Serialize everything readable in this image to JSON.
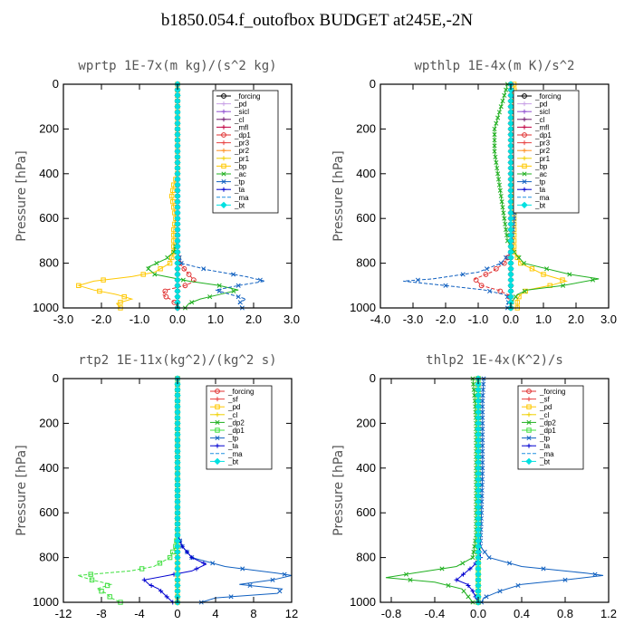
{
  "figure_title": "b1850.054.f_outofbox  BUDGET at245E,-2N",
  "chart_data": [
    {
      "type": "line",
      "title": "wprtp  1E-7x(m kg)/(s^2 kg)",
      "ylabel": "Pressure [hPa]",
      "xlim": [
        -3.0,
        3.0
      ],
      "ylim": [
        1000,
        0
      ],
      "xticks": [
        "-3.0",
        "-2.0",
        "-1.0",
        "0.0",
        "1.0",
        "2.0",
        "3.0"
      ],
      "xtick_values": [
        -3,
        -2,
        -1,
        0,
        1,
        2,
        3
      ],
      "yticks": [
        "0",
        "200",
        "400",
        "600",
        "800",
        "1000"
      ],
      "ytick_values": [
        0,
        200,
        400,
        600,
        800,
        1000
      ],
      "series": [
        {
          "name": "_forcing",
          "color": "#000000",
          "marker": "o",
          "y": [
            0,
            1000
          ],
          "x": [
            0,
            0
          ]
        },
        {
          "name": "_pd",
          "color": "#c8a0e6",
          "marker": "+",
          "y": [
            0,
            1000
          ],
          "x": [
            0,
            0
          ]
        },
        {
          "name": "_sicl",
          "color": "#9050d0",
          "marker": "+",
          "y": [
            0,
            1000
          ],
          "x": [
            0,
            0
          ]
        },
        {
          "name": "_cl",
          "color": "#701870",
          "marker": "+",
          "y": [
            0,
            1000
          ],
          "x": [
            0,
            0
          ]
        },
        {
          "name": "_mfl",
          "color": "#c00040",
          "marker": "+",
          "y": [
            0,
            1000
          ],
          "x": [
            0,
            0
          ]
        },
        {
          "name": "_dp1",
          "color": "#e03030",
          "marker": "o",
          "y": [
            0,
            750,
            800,
            850,
            880,
            900,
            920,
            940,
            960,
            980,
            1000
          ],
          "x": [
            0,
            0,
            0.05,
            0.3,
            0.45,
            0.2,
            -0.3,
            -0.4,
            -0.2,
            -0.05,
            0
          ]
        },
        {
          "name": "_pr3",
          "color": "#e84040",
          "marker": "+",
          "y": [
            0,
            1000
          ],
          "x": [
            0,
            0
          ]
        },
        {
          "name": "_pr2",
          "color": "#ff9020",
          "marker": "+",
          "y": [
            0,
            1000
          ],
          "x": [
            0,
            0
          ]
        },
        {
          "name": "_pr1",
          "color": "#f0d000",
          "marker": "+",
          "y": [
            0,
            1000
          ],
          "x": [
            0,
            0
          ]
        },
        {
          "name": "_bp",
          "color": "#ffc800",
          "marker": "s",
          "y": [
            0,
            400,
            450,
            500,
            550,
            600,
            650,
            700,
            750,
            800,
            840,
            860,
            880,
            900,
            920,
            940,
            960,
            980,
            1000
          ],
          "x": [
            0,
            0,
            -0.1,
            -0.15,
            -0.1,
            -0.05,
            -0.1,
            -0.1,
            -0.1,
            -0.2,
            -0.6,
            -1.2,
            -2.2,
            -2.6,
            -2.2,
            -1.6,
            -1.2,
            -1.6,
            -1.5
          ]
        },
        {
          "name": "_ac",
          "color": "#20b020",
          "marker": "x",
          "y": [
            0,
            700,
            750,
            780,
            820,
            850,
            880,
            900,
            920,
            940,
            960,
            980,
            1000
          ],
          "x": [
            0,
            0,
            -0.1,
            -0.3,
            -0.8,
            -0.6,
            0.3,
            1.1,
            1.6,
            1.1,
            0.6,
            0.3,
            0.2
          ]
        },
        {
          "name": "_tp",
          "color": "#1060c0",
          "marker": "x",
          "y": [
            0,
            750,
            800,
            830,
            860,
            880,
            900,
            920,
            940,
            960,
            980,
            1000
          ],
          "x": [
            0,
            0,
            0.1,
            0.8,
            1.8,
            2.3,
            1.6,
            1.0,
            1.4,
            1.8,
            1.6,
            1.7
          ]
        },
        {
          "name": "_ta",
          "color": "#0000d0",
          "marker": "+",
          "y": [
            0,
            1000
          ],
          "x": [
            0,
            0
          ]
        },
        {
          "name": "_ma",
          "color": "#2090e0",
          "marker": "-",
          "y": [
            0,
            1000
          ],
          "x": [
            0,
            0
          ]
        },
        {
          "name": "_bt",
          "color": "#00e0e0",
          "marker": "d",
          "y": [
            0,
            1000
          ],
          "x": [
            0,
            0
          ]
        }
      ]
    },
    {
      "type": "line",
      "title": "wpthlp  1E-4x(m K)/s^2",
      "ylabel": "Pressure [hPa]",
      "xlim": [
        -4.0,
        3.0
      ],
      "ylim": [
        1000,
        0
      ],
      "xticks": [
        "-4.0",
        "-3.0",
        "-2.0",
        "-1.0",
        "0.0",
        "1.0",
        "2.0",
        "3.0"
      ],
      "xtick_values": [
        -4,
        -3,
        -2,
        -1,
        0,
        1,
        2,
        3
      ],
      "yticks": [
        "0",
        "200",
        "400",
        "600",
        "800",
        "1000"
      ],
      "ytick_values": [
        0,
        200,
        400,
        600,
        800,
        1000
      ],
      "series": [
        {
          "name": "_forcing",
          "color": "#000000",
          "marker": "o",
          "y": [
            0,
            1000
          ],
          "x": [
            0,
            0
          ]
        },
        {
          "name": "_pd",
          "color": "#c8a0e6",
          "marker": "+",
          "y": [
            0,
            1000
          ],
          "x": [
            0,
            0
          ]
        },
        {
          "name": "_sicl",
          "color": "#9050d0",
          "marker": "+",
          "y": [
            0,
            1000
          ],
          "x": [
            0,
            0
          ]
        },
        {
          "name": "_cl",
          "color": "#701870",
          "marker": "+",
          "y": [
            0,
            1000
          ],
          "x": [
            0,
            0
          ]
        },
        {
          "name": "_mfl",
          "color": "#c00040",
          "marker": "+",
          "y": [
            0,
            1000
          ],
          "x": [
            0,
            0
          ]
        },
        {
          "name": "_dp1",
          "color": "#e03030",
          "marker": "o",
          "y": [
            0,
            750,
            800,
            840,
            870,
            900,
            920,
            940,
            960,
            980,
            1000
          ],
          "x": [
            0,
            0,
            -0.2,
            -0.6,
            -1.1,
            -0.9,
            -0.4,
            -0.1,
            0,
            0,
            0
          ]
        },
        {
          "name": "_pr3",
          "color": "#e84040",
          "marker": "+",
          "y": [
            0,
            1000
          ],
          "x": [
            0,
            0
          ]
        },
        {
          "name": "_pr2",
          "color": "#ff9020",
          "marker": "+",
          "y": [
            0,
            1000
          ],
          "x": [
            0,
            0
          ]
        },
        {
          "name": "_pr1",
          "color": "#f0d000",
          "marker": "+",
          "y": [
            0,
            1000
          ],
          "x": [
            0,
            0
          ]
        },
        {
          "name": "_bp",
          "color": "#ffc800",
          "marker": "s",
          "y": [
            0,
            200,
            400,
            600,
            750,
            800,
            850,
            880,
            900,
            920,
            940,
            960,
            1000
          ],
          "x": [
            0.1,
            0.15,
            0.15,
            0.1,
            0.1,
            0.3,
            1.0,
            1.7,
            1.2,
            0.5,
            0.3,
            0.2,
            0.2
          ]
        },
        {
          "name": "_ac",
          "color": "#20b020",
          "marker": "x",
          "y": [
            0,
            100,
            200,
            300,
            400,
            500,
            600,
            700,
            750,
            800,
            850,
            870,
            900,
            920,
            940,
            960,
            980,
            1000
          ],
          "x": [
            -0.1,
            -0.3,
            -0.5,
            -0.5,
            -0.4,
            -0.3,
            -0.2,
            -0.1,
            0.1,
            0.4,
            1.8,
            2.7,
            1.6,
            0.5,
            0.2,
            0.1,
            0,
            0
          ]
        },
        {
          "name": "_tp",
          "color": "#1060c0",
          "marker": "x",
          "y": [
            0,
            100,
            200,
            400,
            600,
            750,
            800,
            840,
            870,
            880,
            900,
            920,
            940,
            960,
            980,
            1000
          ],
          "x": [
            0,
            0.1,
            0.2,
            0.2,
            0.1,
            0,
            -0.3,
            -1.0,
            -2.4,
            -3.3,
            -2.0,
            -0.8,
            -0.2,
            0,
            -0.1,
            -0.1
          ]
        },
        {
          "name": "_ta",
          "color": "#0000d0",
          "marker": "+",
          "y": [
            0,
            1000
          ],
          "x": [
            0,
            0
          ]
        },
        {
          "name": "_ma",
          "color": "#2090e0",
          "marker": "-",
          "y": [
            0,
            1000
          ],
          "x": [
            0,
            0
          ]
        },
        {
          "name": "_bt",
          "color": "#00e0e0",
          "marker": "d",
          "y": [
            0,
            1000
          ],
          "x": [
            0,
            0
          ]
        }
      ]
    },
    {
      "type": "line",
      "title": "rtp2  1E-11x(kg^2)/(kg^2 s)",
      "ylabel": "Pressure [hPa]",
      "xlim": [
        -12,
        12
      ],
      "ylim": [
        1000,
        0
      ],
      "xticks": [
        "-12",
        "-8",
        "-4",
        "0",
        "4",
        "8",
        "12"
      ],
      "xtick_values": [
        -12,
        -8,
        -4,
        0,
        4,
        8,
        12
      ],
      "yticks": [
        "0",
        "200",
        "400",
        "600",
        "800",
        "1000"
      ],
      "ytick_values": [
        0,
        200,
        400,
        600,
        800,
        1000
      ],
      "series": [
        {
          "name": "_forcing",
          "color": "#e03030",
          "marker": "o",
          "y": [
            0,
            1000
          ],
          "x": [
            0,
            0
          ]
        },
        {
          "name": "_sf",
          "color": "#e84040",
          "marker": "+",
          "y": [
            0,
            1000
          ],
          "x": [
            0,
            0
          ]
        },
        {
          "name": "_pd",
          "color": "#ffc800",
          "marker": "s",
          "y": [
            0,
            1000
          ],
          "x": [
            0,
            0
          ]
        },
        {
          "name": "_cl",
          "color": "#f0d000",
          "marker": "+",
          "y": [
            0,
            1000
          ],
          "x": [
            0,
            0
          ]
        },
        {
          "name": "_dp2",
          "color": "#20b020",
          "marker": "x",
          "y": [
            0,
            1000
          ],
          "x": [
            0,
            0
          ]
        },
        {
          "name": "_dp1",
          "color": "#40e040",
          "marker": "s",
          "y": [
            0,
            700,
            750,
            800,
            840,
            860,
            880,
            900,
            920,
            940,
            960,
            980,
            1000
          ],
          "x": [
            0,
            0,
            -0.2,
            -0.8,
            -2.5,
            -5.0,
            -10.5,
            -9.0,
            -7.0,
            -8.5,
            -7.5,
            -7.0,
            -6.0
          ]
        },
        {
          "name": "_tp",
          "color": "#1060c0",
          "marker": "x",
          "y": [
            0,
            700,
            750,
            800,
            840,
            870,
            880,
            900,
            920,
            940,
            960,
            980,
            1000
          ],
          "x": [
            0,
            0,
            0.5,
            1.5,
            5.0,
            10.5,
            12.0,
            10.0,
            6.5,
            11.0,
            10.5,
            4.0,
            2.5
          ]
        },
        {
          "name": "_ta",
          "color": "#0000d0",
          "marker": "+",
          "y": [
            0,
            700,
            750,
            800,
            830,
            860,
            880,
            900,
            920,
            940,
            960,
            980,
            1000
          ],
          "x": [
            0,
            0,
            0.5,
            1.5,
            3.0,
            1.5,
            -1.0,
            -3.5,
            -3.0,
            -2.0,
            -1.5,
            -1.0,
            -0.5
          ]
        },
        {
          "name": "_ma",
          "color": "#2090e0",
          "marker": "-",
          "y": [
            0,
            1000
          ],
          "x": [
            0,
            0
          ]
        },
        {
          "name": "_bt",
          "color": "#00e0e0",
          "marker": "d",
          "y": [
            0,
            1000
          ],
          "x": [
            0,
            0
          ]
        }
      ]
    },
    {
      "type": "line",
      "title": "thlp2  1E-4x(K^2)/s",
      "ylabel": "Pressure [hPa]",
      "xlim": [
        -0.9,
        1.2
      ],
      "ylim": [
        1000,
        0
      ],
      "xticks": [
        "-0.8",
        "-0.4",
        "0.0",
        "0.4",
        "0.8",
        "1.2"
      ],
      "xtick_values": [
        -0.8,
        -0.4,
        0.0,
        0.4,
        0.8,
        1.2
      ],
      "yticks": [
        "0",
        "200",
        "400",
        "600",
        "800",
        "1000"
      ],
      "ytick_values": [
        0,
        200,
        400,
        600,
        800,
        1000
      ],
      "series": [
        {
          "name": "_forcing",
          "color": "#e03030",
          "marker": "o",
          "y": [
            0,
            1000
          ],
          "x": [
            0,
            0
          ]
        },
        {
          "name": "_sf",
          "color": "#e84040",
          "marker": "+",
          "y": [
            0,
            1000
          ],
          "x": [
            0,
            0
          ]
        },
        {
          "name": "_pd",
          "color": "#ffc800",
          "marker": "s",
          "y": [
            0,
            1000
          ],
          "x": [
            0,
            0
          ]
        },
        {
          "name": "_cl",
          "color": "#f0d000",
          "marker": "+",
          "y": [
            0,
            1000
          ],
          "x": [
            0,
            0
          ]
        },
        {
          "name": "_dp2",
          "color": "#20b020",
          "marker": "x",
          "y": [
            0,
            100,
            200,
            300,
            500,
            700,
            800,
            840,
            870,
            890,
            910,
            940,
            970,
            1000
          ],
          "x": [
            -0.05,
            -0.03,
            -0.02,
            -0.02,
            -0.02,
            -0.02,
            -0.05,
            -0.2,
            -0.6,
            -0.85,
            -0.4,
            -0.15,
            -0.1,
            -0.05
          ]
        },
        {
          "name": "_dp1",
          "color": "#40e040",
          "marker": "s",
          "y": [
            0,
            1000
          ],
          "x": [
            0,
            0
          ]
        },
        {
          "name": "_tp",
          "color": "#1060c0",
          "marker": "x",
          "y": [
            0,
            100,
            200,
            400,
            600,
            750,
            800,
            840,
            870,
            880,
            900,
            920,
            950,
            980,
            1000
          ],
          "x": [
            0.05,
            0.04,
            0.04,
            0.04,
            0.03,
            0.02,
            0.1,
            0.4,
            1.0,
            1.15,
            0.8,
            0.4,
            0.2,
            0.05,
            0.03
          ]
        },
        {
          "name": "_ta",
          "color": "#0000d0",
          "marker": "+",
          "y": [
            0,
            700,
            800,
            840,
            880,
            900,
            920,
            950,
            980,
            1000
          ],
          "x": [
            0,
            0,
            0.02,
            -0.05,
            -0.15,
            -0.2,
            -0.1,
            -0.05,
            -0.02,
            0
          ]
        },
        {
          "name": "_ma",
          "color": "#2090e0",
          "marker": "-",
          "y": [
            0,
            1000
          ],
          "x": [
            0,
            0
          ]
        },
        {
          "name": "_bt",
          "color": "#00e0e0",
          "marker": "d",
          "y": [
            0,
            1000
          ],
          "x": [
            0,
            0
          ]
        }
      ]
    }
  ]
}
